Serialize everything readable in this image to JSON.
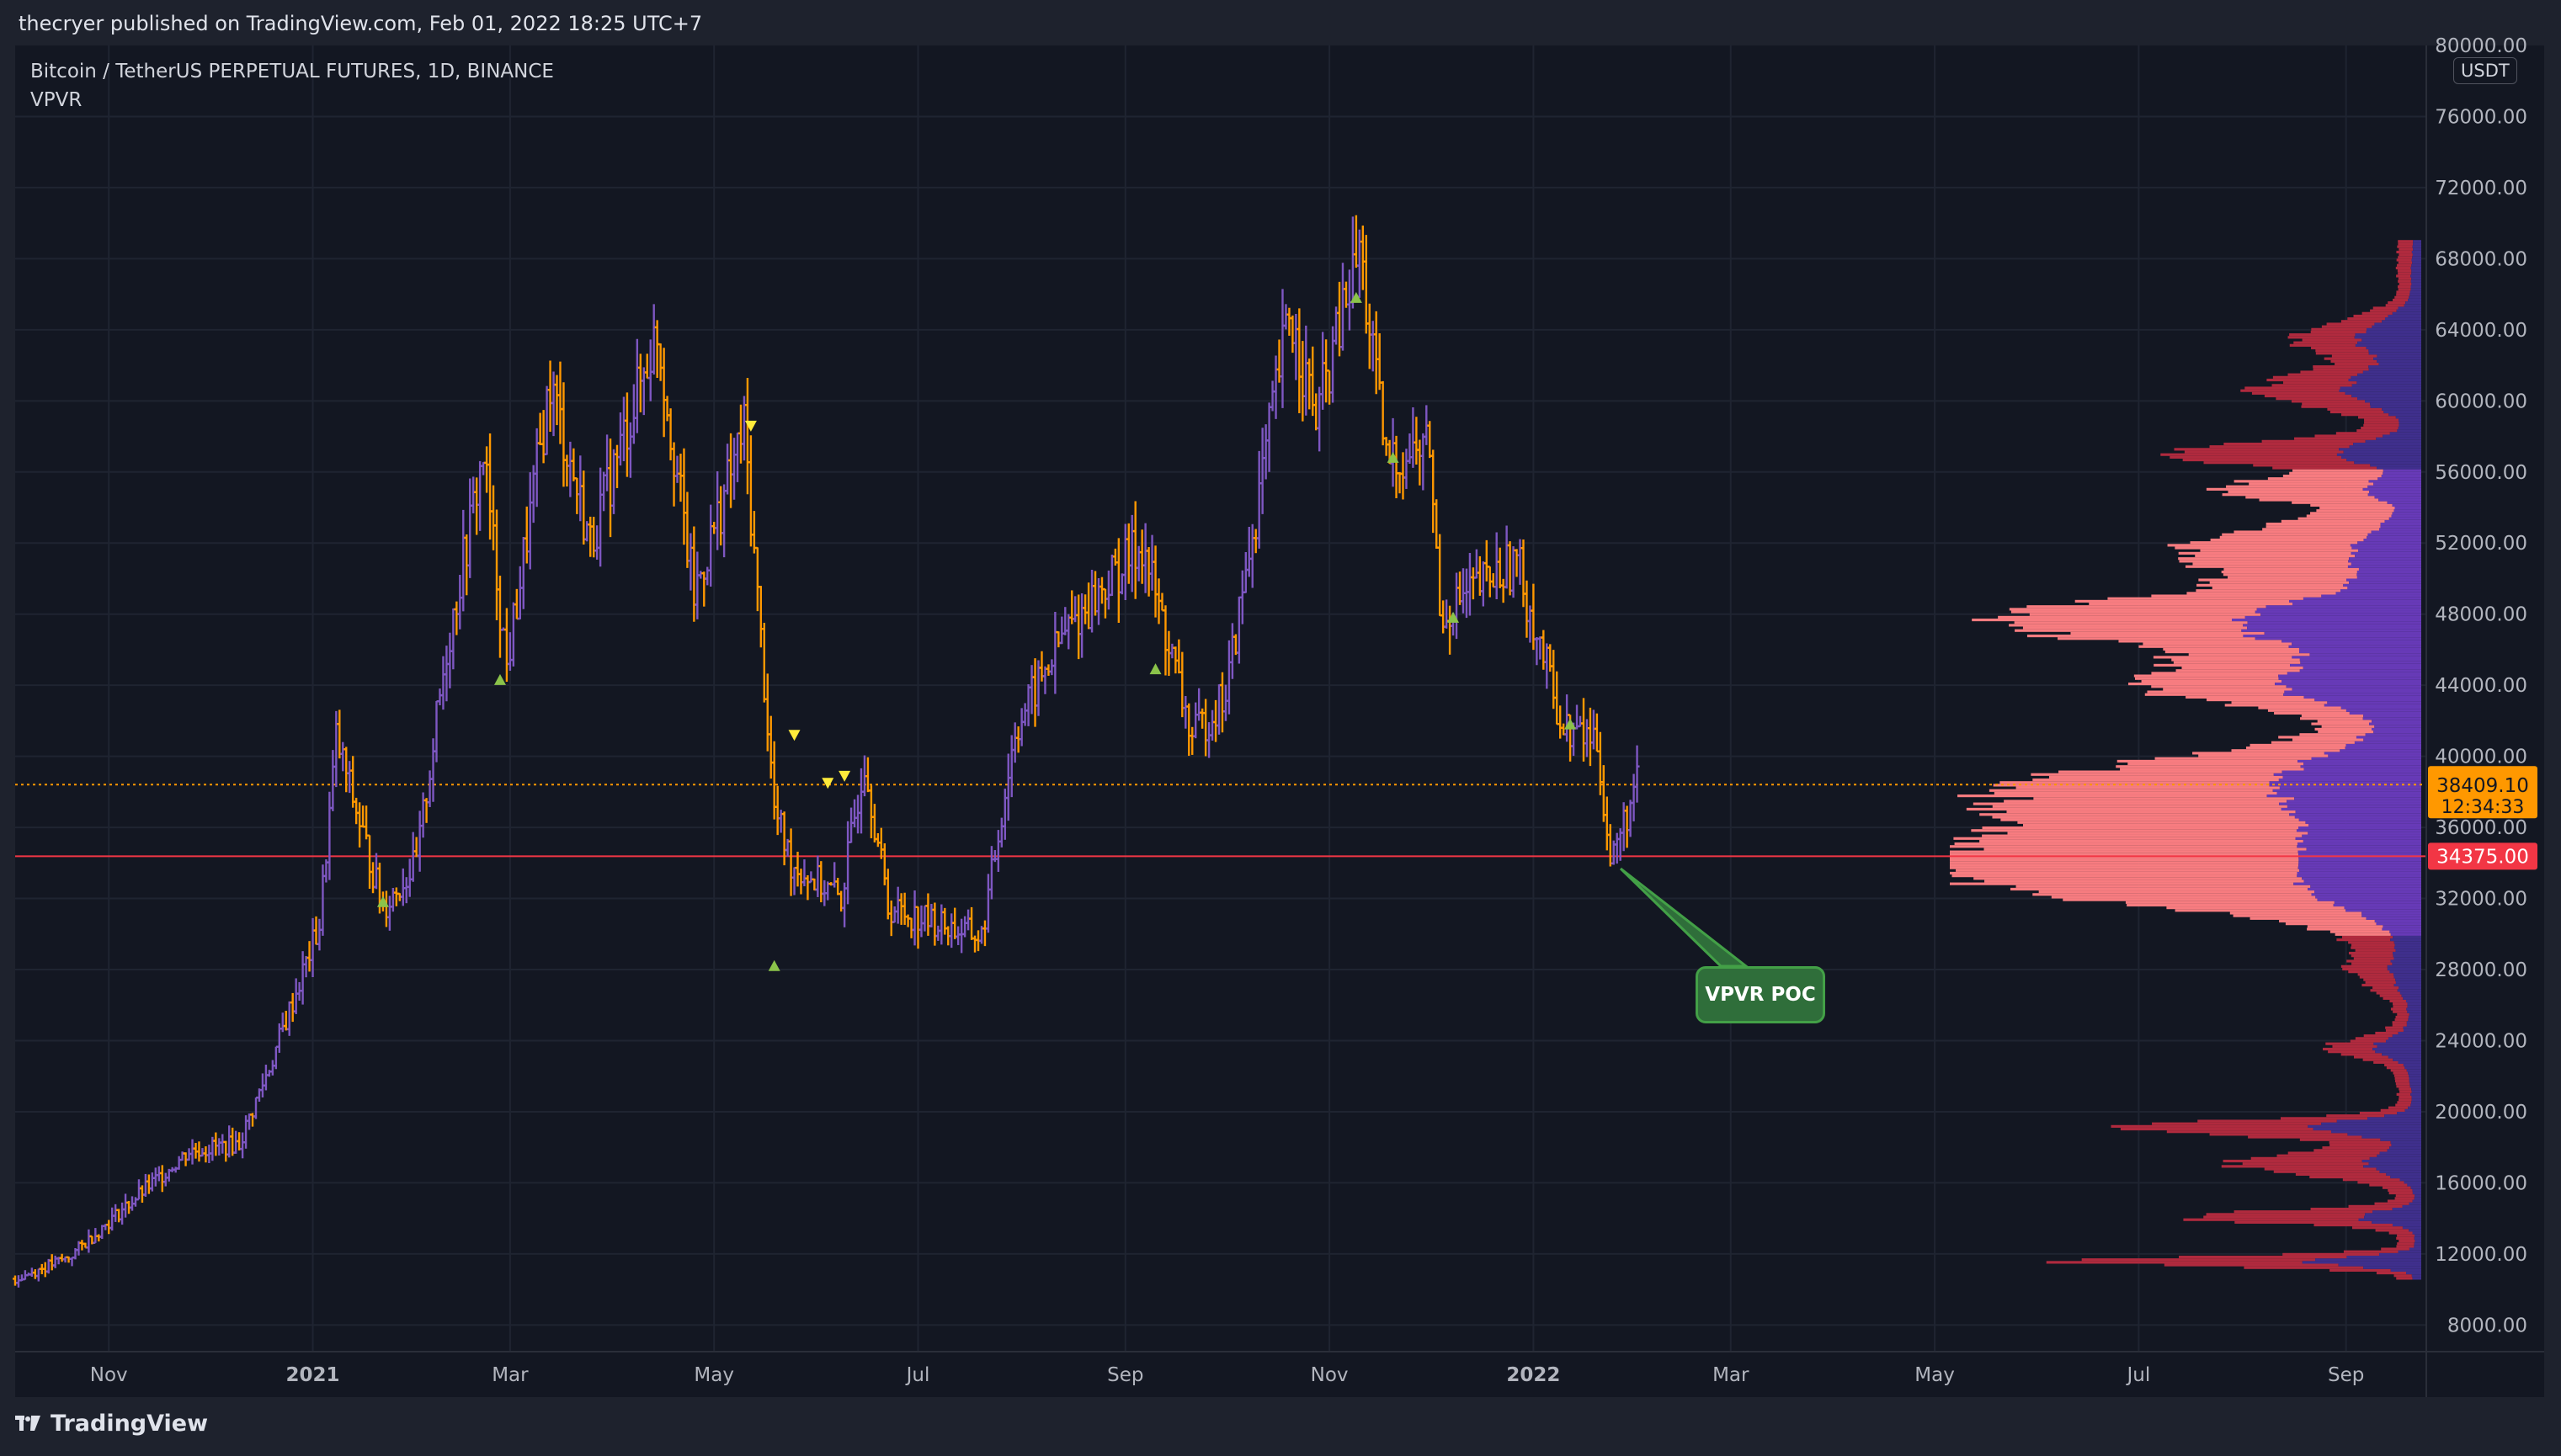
{
  "header": {
    "published_text": "thecryer published on TradingView.com, Feb 01, 2022 18:25 UTC+7"
  },
  "legend": {
    "title": "Bitcoin / TetherUS PERPETUAL FUTURES, 1D, BINANCE",
    "indicator": "VPVR"
  },
  "currency_badge": "USDT",
  "footer": {
    "brand": "TradingView",
    "logo_icon": "tradingview-logo-icon"
  },
  "annotation": {
    "label": "VPVR POC"
  },
  "price_tags": {
    "last": {
      "price": "38409.10",
      "countdown": "12:34:33",
      "color": "#ff9800"
    },
    "poc": {
      "price": "34375.00",
      "color": "#f23645"
    }
  },
  "colors": {
    "background": "#131722",
    "bull_bar": "#7e57c2",
    "bear_bar": "#ff9800",
    "vp_up_value_area": "#673ab7",
    "vp_down_value_area": "#f77c80",
    "vp_up_outside": "#3f2f8c",
    "vp_down_outside": "#b02a3e",
    "poc_line": "#f23645",
    "last_price_line": "#ff9800",
    "marker_up": "#8bc34a",
    "marker_down": "#ffeb3b"
  },
  "chart_data": {
    "type": "ohlc",
    "symbol": "Bitcoin / TetherUS PERPETUAL FUTURES, 1D, BINANCE",
    "x_axis": {
      "tick_labels": [
        "Nov",
        "2021",
        "Mar",
        "May",
        "Jul",
        "Sep",
        "Nov",
        "2022",
        "Mar",
        "May",
        "Jul",
        "Sep"
      ],
      "tick_dates": [
        "2020-11-01",
        "2021-01-01",
        "2021-03-01",
        "2021-05-01",
        "2021-07-01",
        "2021-09-01",
        "2021-11-01",
        "2022-01-01",
        "2022-03-01",
        "2022-05-01",
        "2022-07-01",
        "2022-09-01"
      ],
      "range": [
        "2020-10-04",
        "2022-09-25"
      ]
    },
    "y_axis": {
      "tick_labels": [
        "8000.00",
        "12000.00",
        "16000.00",
        "20000.00",
        "24000.00",
        "28000.00",
        "32000.00",
        "36000.00",
        "40000.00",
        "44000.00",
        "48000.00",
        "52000.00",
        "56000.00",
        "60000.00",
        "64000.00",
        "68000.00",
        "72000.00",
        "76000.00",
        "80000.00"
      ],
      "range": [
        6500,
        80000
      ],
      "unit": "USDT"
    },
    "grid": true,
    "last_price": 38409.1,
    "poc_price": 34375,
    "price_path": [
      [
        "2020-10-04",
        10600
      ],
      [
        "2020-10-20",
        11800
      ],
      [
        "2020-11-05",
        14500
      ],
      [
        "2020-11-25",
        17800
      ],
      [
        "2020-12-10",
        18200
      ],
      [
        "2020-12-20",
        23000
      ],
      [
        "2021-01-03",
        30500
      ],
      [
        "2021-01-08",
        41000
      ],
      [
        "2021-01-22",
        31500
      ],
      [
        "2021-02-01",
        34000
      ],
      [
        "2021-02-10",
        46000
      ],
      [
        "2021-02-21",
        57000
      ],
      [
        "2021-02-28",
        45000
      ],
      [
        "2021-03-13",
        61000
      ],
      [
        "2021-03-25",
        52000
      ],
      [
        "2021-04-14",
        64000
      ],
      [
        "2021-04-25",
        49000
      ],
      [
        "2021-05-10",
        58500
      ],
      [
        "2021-05-19",
        37000
      ],
      [
        "2021-05-24",
        34000
      ],
      [
        "2021-06-08",
        32000
      ],
      [
        "2021-06-15",
        40000
      ],
      [
        "2021-06-22",
        31500
      ],
      [
        "2021-07-20",
        29800
      ],
      [
        "2021-07-30",
        41500
      ],
      [
        "2021-08-14",
        47000
      ],
      [
        "2021-09-06",
        52000
      ],
      [
        "2021-09-21",
        41000
      ],
      [
        "2021-10-01",
        43500
      ],
      [
        "2021-10-20",
        65000
      ],
      [
        "2021-10-28",
        59000
      ],
      [
        "2021-11-10",
        68500
      ],
      [
        "2021-11-18",
        56500
      ],
      [
        "2021-12-01",
        57500
      ],
      [
        "2021-12-04",
        48000
      ],
      [
        "2021-12-27",
        51000
      ],
      [
        "2022-01-10",
        41500
      ],
      [
        "2022-01-20",
        41000
      ],
      [
        "2022-01-24",
        34000
      ],
      [
        "2022-02-01",
        38409
      ]
    ],
    "markers": [
      {
        "date": "2021-01-22",
        "price": 31800,
        "type": "up"
      },
      {
        "date": "2021-02-26",
        "price": 44300,
        "type": "up"
      },
      {
        "date": "2021-05-12",
        "price": 58600,
        "type": "down"
      },
      {
        "date": "2021-05-19",
        "price": 28200,
        "type": "up"
      },
      {
        "date": "2021-05-25",
        "price": 41200,
        "type": "down"
      },
      {
        "date": "2021-06-04",
        "price": 38500,
        "type": "down"
      },
      {
        "date": "2021-06-09",
        "price": 38900,
        "type": "down"
      },
      {
        "date": "2021-09-10",
        "price": 44900,
        "type": "up"
      },
      {
        "date": "2021-11-09",
        "price": 65800,
        "type": "up"
      },
      {
        "date": "2021-11-20",
        "price": 56800,
        "type": "up"
      },
      {
        "date": "2021-12-08",
        "price": 47800,
        "type": "up"
      },
      {
        "date": "2022-01-12",
        "price": 41800,
        "type": "up"
      }
    ]
  }
}
